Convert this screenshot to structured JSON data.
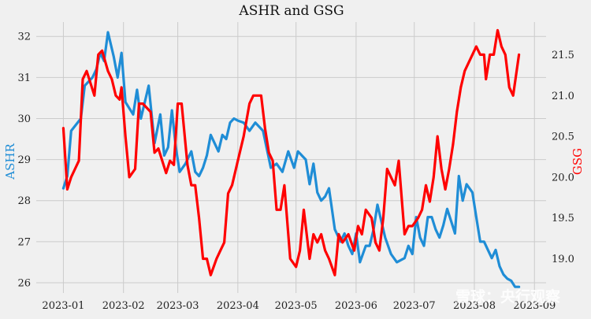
{
  "chart_data": {
    "type": "line",
    "title": "ASHR and GSG",
    "left_axis": {
      "label": "ASHR",
      "color": "#1f8dd6",
      "ylim": [
        25.75,
        32.35
      ],
      "ticks": [
        26,
        27,
        28,
        29,
        30,
        31,
        32
      ]
    },
    "right_axis": {
      "label": "GSG",
      "color": "#ff0000",
      "ylim": [
        18.58,
        21.9
      ],
      "ticks": [
        19.0,
        19.5,
        20.0,
        20.5,
        21.0,
        21.5
      ],
      "tick_labels": [
        "19.0",
        "19.5",
        "20.0",
        "20.5",
        "21.0",
        "21.5"
      ]
    },
    "x_axis": {
      "ticks": [
        "2023-01",
        "2023-02",
        "2023-03",
        "2023-04",
        "2023-05",
        "2023-06",
        "2023-07",
        "2023-08",
        "2023-09"
      ],
      "xlim": [
        "2022-12-18",
        "2023-09-07"
      ]
    },
    "grid": true,
    "series": [
      {
        "name": "ASHR",
        "axis": "left",
        "color": "#1f8dd6",
        "x": [
          "2023-01-01",
          "2023-01-03",
          "2023-01-05",
          "2023-01-10",
          "2023-01-12",
          "2023-01-16",
          "2023-01-18",
          "2023-01-20",
          "2023-01-22",
          "2023-01-24",
          "2023-01-27",
          "2023-01-29",
          "2023-01-31",
          "2023-02-02",
          "2023-02-06",
          "2023-02-08",
          "2023-02-10",
          "2023-02-14",
          "2023-02-17",
          "2023-02-20",
          "2023-02-22",
          "2023-02-24",
          "2023-02-26",
          "2023-02-28",
          "2023-03-02",
          "2023-03-05",
          "2023-03-08",
          "2023-03-10",
          "2023-03-12",
          "2023-03-14",
          "2023-03-16",
          "2023-03-18",
          "2023-03-22",
          "2023-03-24",
          "2023-03-26",
          "2023-03-28",
          "2023-03-30",
          "2023-04-01",
          "2023-04-04",
          "2023-04-07",
          "2023-04-10",
          "2023-04-14",
          "2023-04-18",
          "2023-04-21",
          "2023-04-24",
          "2023-04-27",
          "2023-04-30",
          "2023-05-02",
          "2023-05-06",
          "2023-05-08",
          "2023-05-10",
          "2023-05-12",
          "2023-05-14",
          "2023-05-16",
          "2023-05-18",
          "2023-05-21",
          "2023-05-24",
          "2023-05-26",
          "2023-05-28",
          "2023-05-30",
          "2023-06-01",
          "2023-06-03",
          "2023-06-06",
          "2023-06-08",
          "2023-06-10",
          "2023-06-12",
          "2023-06-14",
          "2023-06-16",
          "2023-06-19",
          "2023-06-22",
          "2023-06-26",
          "2023-06-28",
          "2023-06-30",
          "2023-07-02",
          "2023-07-04",
          "2023-07-06",
          "2023-07-08",
          "2023-07-10",
          "2023-07-12",
          "2023-07-14",
          "2023-07-16",
          "2023-07-18",
          "2023-07-20",
          "2023-07-22",
          "2023-07-24",
          "2023-07-26",
          "2023-07-28",
          "2023-07-31",
          "2023-08-02",
          "2023-08-04",
          "2023-08-06",
          "2023-08-08",
          "2023-08-10",
          "2023-08-12",
          "2023-08-14",
          "2023-08-16",
          "2023-08-18",
          "2023-08-20",
          "2023-08-22",
          "2023-08-24"
        ],
        "values": [
          28.3,
          28.6,
          29.7,
          30.0,
          30.8,
          31.0,
          31.2,
          31.6,
          31.4,
          32.1,
          31.5,
          31.0,
          31.6,
          30.4,
          30.1,
          30.7,
          30.0,
          30.8,
          29.4,
          30.1,
          29.1,
          29.3,
          30.2,
          29.3,
          28.7,
          28.9,
          29.2,
          28.7,
          28.6,
          28.8,
          29.1,
          29.6,
          29.2,
          29.6,
          29.5,
          29.9,
          30.0,
          29.95,
          29.9,
          29.7,
          29.9,
          29.7,
          28.8,
          28.9,
          28.7,
          29.2,
          28.8,
          29.2,
          29.0,
          28.4,
          28.9,
          28.2,
          28.0,
          28.1,
          28.3,
          27.3,
          27.0,
          27.2,
          26.9,
          26.7,
          27.2,
          26.5,
          26.9,
          26.9,
          27.3,
          27.9,
          27.5,
          27.1,
          26.7,
          26.5,
          26.6,
          26.9,
          26.7,
          27.6,
          27.1,
          26.9,
          27.6,
          27.6,
          27.3,
          27.1,
          27.4,
          27.8,
          27.5,
          27.2,
          28.6,
          28.0,
          28.4,
          28.2,
          27.6,
          27.0,
          27.0,
          26.8,
          26.6,
          26.8,
          26.4,
          26.2,
          26.1,
          26.05,
          25.9,
          25.9
        ],
        "values_note_removed": true
      },
      {
        "name": "GSG",
        "axis": "right",
        "color": "#ff0000",
        "x": [
          "2023-01-01",
          "2023-01-03",
          "2023-01-05",
          "2023-01-07",
          "2023-01-09",
          "2023-01-11",
          "2023-01-13",
          "2023-01-17",
          "2023-01-19",
          "2023-01-21",
          "2023-01-24",
          "2023-01-26",
          "2023-01-28",
          "2023-01-30",
          "2023-01-31",
          "2023-02-02",
          "2023-02-04",
          "2023-02-07",
          "2023-02-09",
          "2023-02-11",
          "2023-02-15",
          "2023-02-17",
          "2023-02-19",
          "2023-02-23",
          "2023-02-25",
          "2023-02-27",
          "2023-03-01",
          "2023-03-03",
          "2023-03-06",
          "2023-03-08",
          "2023-03-10",
          "2023-03-12",
          "2023-03-14",
          "2023-03-16",
          "2023-03-18",
          "2023-03-21",
          "2023-03-23",
          "2023-03-25",
          "2023-03-27",
          "2023-03-29",
          "2023-04-01",
          "2023-04-04",
          "2023-04-07",
          "2023-04-09",
          "2023-04-11",
          "2023-04-13",
          "2023-04-15",
          "2023-04-17",
          "2023-04-19",
          "2023-04-21",
          "2023-04-23",
          "2023-04-25",
          "2023-04-28",
          "2023-05-01",
          "2023-05-03",
          "2023-05-05",
          "2023-05-08",
          "2023-05-10",
          "2023-05-12",
          "2023-05-14",
          "2023-05-16",
          "2023-05-18",
          "2023-05-21",
          "2023-05-23",
          "2023-05-25",
          "2023-05-28",
          "2023-05-31",
          "2023-06-02",
          "2023-06-04",
          "2023-06-06",
          "2023-06-09",
          "2023-06-11",
          "2023-06-13",
          "2023-06-15",
          "2023-06-17",
          "2023-06-19",
          "2023-06-21",
          "2023-06-23",
          "2023-06-26",
          "2023-06-28",
          "2023-06-30",
          "2023-07-03",
          "2023-07-05",
          "2023-07-07",
          "2023-07-09",
          "2023-07-11",
          "2023-07-13",
          "2023-07-15",
          "2023-07-17",
          "2023-07-19",
          "2023-07-21",
          "2023-07-23",
          "2023-07-25",
          "2023-07-27",
          "2023-07-29",
          "2023-07-31",
          "2023-08-02",
          "2023-08-04",
          "2023-08-06",
          "2023-08-07",
          "2023-08-09",
          "2023-08-11",
          "2023-08-13",
          "2023-08-15",
          "2023-08-17",
          "2023-08-19",
          "2023-08-21",
          "2023-08-24"
        ],
        "values": [
          20.6,
          19.85,
          20.0,
          20.1,
          20.2,
          21.2,
          21.3,
          21.0,
          21.5,
          21.55,
          21.3,
          21.2,
          21.0,
          20.95,
          21.1,
          20.5,
          20.0,
          20.1,
          20.9,
          20.9,
          20.8,
          20.3,
          20.35,
          20.05,
          20.2,
          20.15,
          20.9,
          20.9,
          20.15,
          19.9,
          19.9,
          19.5,
          19.0,
          19.0,
          18.8,
          19.0,
          19.1,
          19.2,
          19.8,
          19.9,
          20.2,
          20.5,
          20.9,
          21.0,
          21.0,
          21.0,
          20.6,
          20.3,
          20.2,
          19.6,
          19.6,
          19.9,
          19.0,
          18.9,
          19.1,
          19.6,
          19.0,
          19.3,
          19.2,
          19.3,
          19.1,
          19.0,
          18.8,
          19.3,
          19.2,
          19.3,
          19.1,
          19.4,
          19.3,
          19.6,
          19.5,
          19.2,
          19.1,
          19.5,
          20.1,
          20.0,
          19.9,
          20.2,
          19.3,
          19.4,
          19.4,
          19.5,
          19.6,
          19.9,
          19.7,
          20.0,
          20.5,
          20.1,
          19.85,
          20.1,
          20.4,
          20.8,
          21.1,
          21.3,
          21.4,
          21.5,
          21.6,
          21.5,
          21.5,
          21.2,
          21.5,
          21.5,
          21.8,
          21.6,
          21.5,
          21.1,
          21.0,
          21.5
        ],
        "values_note_removed": true
      }
    ]
  },
  "watermark": "雪球：央行观察"
}
